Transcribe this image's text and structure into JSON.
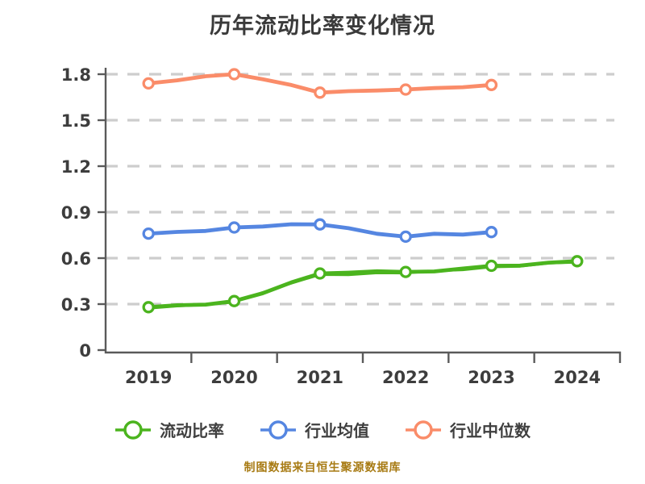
{
  "title": "历年流动比率变化情况",
  "caption": "制图数据来自恒生聚源数据库",
  "chart_data": {
    "type": "line",
    "title": "历年流动比率变化情况",
    "categories": [
      "2019",
      "2020",
      "2021",
      "2022",
      "2023",
      "2024"
    ],
    "series": [
      {
        "name": "流动比率",
        "color": "#4bb41e",
        "values": [
          0.28,
          0.32,
          0.5,
          0.51,
          0.55,
          0.58
        ],
        "sketchy": true
      },
      {
        "name": "行业均值",
        "color": "#5586e1",
        "values": [
          0.76,
          0.8,
          0.82,
          0.74,
          0.77,
          null
        ],
        "sketchy": false
      },
      {
        "name": "行业中位数",
        "color": "#fa8c69",
        "values": [
          1.74,
          1.8,
          1.68,
          1.7,
          1.73,
          null
        ],
        "sketchy": false
      }
    ],
    "xlabel": "",
    "ylabel": "",
    "ylim": [
      0,
      1.9
    ],
    "yticks": [
      0,
      0.3,
      0.6,
      0.9,
      1.2,
      1.5,
      1.8
    ],
    "grid": "horizontal-dashed",
    "legend_position": "bottom",
    "marker": "circle-white-fill"
  },
  "colors": {
    "background": "#ffffff",
    "title_text": "#3a3a3a",
    "axis_line": "#5a5a5a",
    "tick_label": "#3d3d3d",
    "gridline": "#cdcdcd",
    "legend_text": "#3f3f3f",
    "caption_text": "#a87b14",
    "marker_fill": "#ffffff"
  }
}
